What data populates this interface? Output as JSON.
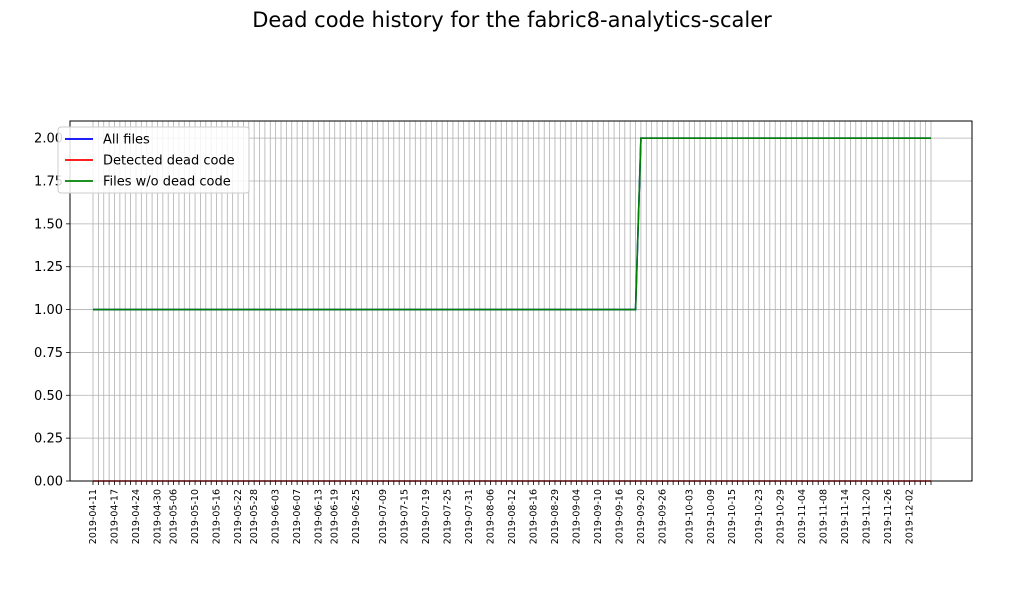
{
  "chart_data": {
    "type": "line",
    "title": "Dead code history for the fabric8-analytics-scaler",
    "xlabel": "",
    "ylabel": "",
    "ylim": [
      0,
      2.1
    ],
    "yticks": [
      "0.00",
      "0.25",
      "0.50",
      "0.75",
      "1.00",
      "1.25",
      "1.50",
      "1.75",
      "2.00"
    ],
    "grid": true,
    "legend_position": "top-left",
    "x": [
      "2019-04-11",
      "2019-04-12",
      "2019-04-15",
      "2019-04-16",
      "2019-04-17",
      "2019-04-18",
      "2019-04-19",
      "2019-04-23",
      "2019-04-24",
      "2019-04-25",
      "2019-04-26",
      "2019-04-29",
      "2019-04-30",
      "2019-05-02",
      "2019-05-03",
      "2019-05-06",
      "2019-05-07",
      "2019-05-08",
      "2019-05-09",
      "2019-05-10",
      "2019-05-13",
      "2019-05-14",
      "2019-05-15",
      "2019-05-16",
      "2019-05-17",
      "2019-05-20",
      "2019-05-21",
      "2019-05-22",
      "2019-05-23",
      "2019-05-24",
      "2019-05-28",
      "2019-05-29",
      "2019-05-30",
      "2019-05-31",
      "2019-06-03",
      "2019-06-04",
      "2019-06-05",
      "2019-06-06",
      "2019-06-07",
      "2019-06-10",
      "2019-06-11",
      "2019-06-12",
      "2019-06-13",
      "2019-06-14",
      "2019-06-17",
      "2019-06-19",
      "2019-06-20",
      "2019-06-21",
      "2019-06-24",
      "2019-06-25",
      "2019-06-26",
      "2019-06-27",
      "2019-06-28",
      "2019-07-01",
      "2019-07-09",
      "2019-07-10",
      "2019-07-11",
      "2019-07-12",
      "2019-07-15",
      "2019-07-16",
      "2019-07-17",
      "2019-07-18",
      "2019-07-19",
      "2019-07-22",
      "2019-07-23",
      "2019-07-24",
      "2019-07-25",
      "2019-07-26",
      "2019-07-29",
      "2019-07-30",
      "2019-07-31",
      "2019-08-01",
      "2019-08-02",
      "2019-08-05",
      "2019-08-06",
      "2019-08-07",
      "2019-08-08",
      "2019-08-09",
      "2019-08-12",
      "2019-08-13",
      "2019-08-14",
      "2019-08-15",
      "2019-08-16",
      "2019-08-19",
      "2019-08-20",
      "2019-08-21",
      "2019-08-29",
      "2019-08-30",
      "2019-09-02",
      "2019-09-03",
      "2019-09-04",
      "2019-09-05",
      "2019-09-06",
      "2019-09-09",
      "2019-09-10",
      "2019-09-11",
      "2019-09-12",
      "2019-09-13",
      "2019-09-16",
      "2019-09-17",
      "2019-09-18",
      "2019-09-19",
      "2019-09-20",
      "2019-09-23",
      "2019-09-24",
      "2019-09-25",
      "2019-09-26",
      "2019-09-27",
      "2019-09-30",
      "2019-10-01",
      "2019-10-02",
      "2019-10-03",
      "2019-10-04",
      "2019-10-07",
      "2019-10-08",
      "2019-10-09",
      "2019-10-10",
      "2019-10-11",
      "2019-10-14",
      "2019-10-15",
      "2019-10-16",
      "2019-10-17",
      "2019-10-18",
      "2019-10-21",
      "2019-10-23",
      "2019-10-24",
      "2019-10-25",
      "2019-10-28",
      "2019-10-29",
      "2019-10-30",
      "2019-10-31",
      "2019-11-01",
      "2019-11-04",
      "2019-11-05",
      "2019-11-06",
      "2019-11-07",
      "2019-11-08",
      "2019-11-11",
      "2019-11-12",
      "2019-11-13",
      "2019-11-14",
      "2019-11-15",
      "2019-11-18",
      "2019-11-19",
      "2019-11-20",
      "2019-11-21",
      "2019-11-22",
      "2019-11-25",
      "2019-11-26",
      "2019-11-27",
      "2019-11-28",
      "2019-11-29",
      "2019-12-02",
      "2019-12-03",
      "2019-12-04",
      "2019-12-05",
      "2019-12-06"
    ],
    "tick_labels": [
      "2019-04-11",
      "2019-04-17",
      "2019-04-24",
      "2019-04-30",
      "2019-05-06",
      "2019-05-10",
      "2019-05-16",
      "2019-05-22",
      "2019-05-28",
      "2019-06-03",
      "2019-06-07",
      "2019-06-13",
      "2019-06-19",
      "2019-06-25",
      "2019-07-09",
      "2019-07-15",
      "2019-07-19",
      "2019-07-25",
      "2019-07-31",
      "2019-08-06",
      "2019-08-12",
      "2019-08-16",
      "2019-08-29",
      "2019-09-04",
      "2019-09-10",
      "2019-09-16",
      "2019-09-20",
      "2019-09-26",
      "2019-10-03",
      "2019-10-09",
      "2019-10-15",
      "2019-10-23",
      "2019-10-29",
      "2019-11-04",
      "2019-11-08",
      "2019-11-14",
      "2019-11-20",
      "2019-11-26",
      "2019-12-02"
    ],
    "switch_date": "2019-09-20",
    "series": [
      {
        "name": "All files",
        "color": "#0000ff",
        "values_before": 1,
        "values_after": 2
      },
      {
        "name": "Detected dead code",
        "color": "#ff0000",
        "values_before": 0,
        "values_after": 0
      },
      {
        "name": "Files w/o dead code",
        "color": "#008000",
        "values_before": 1,
        "values_after": 2
      }
    ]
  }
}
